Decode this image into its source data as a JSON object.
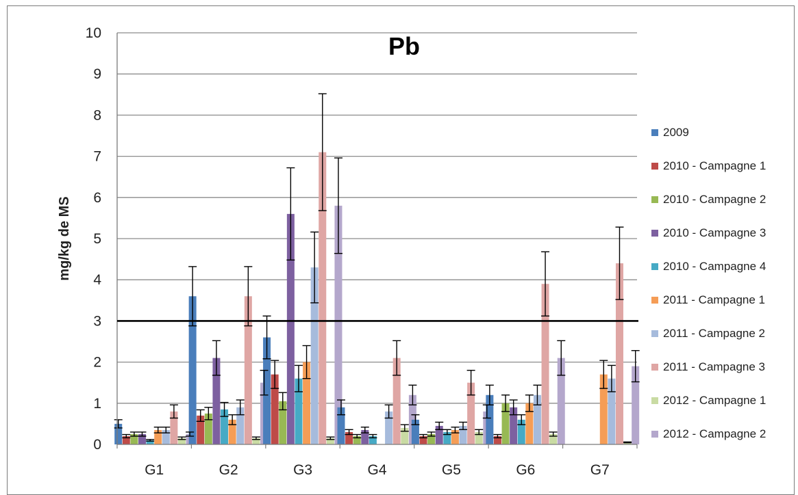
{
  "chart_data": {
    "type": "bar",
    "title": "Pb",
    "ylabel": "mg/kg de MS",
    "xlabel": "",
    "ylim": [
      0,
      10
    ],
    "yticks": [
      0,
      1,
      2,
      3,
      4,
      5,
      6,
      7,
      8,
      9,
      10
    ],
    "grid": true,
    "legend_position": "right",
    "reference_line": 3,
    "categories": [
      "G1",
      "G2",
      "G3",
      "G4",
      "G5",
      "G6",
      "G7"
    ],
    "series": [
      {
        "name": "2009",
        "color": "#4a7ebb",
        "values": [
          0.5,
          3.6,
          2.6,
          0.9,
          0.6,
          1.2,
          null
        ],
        "errors": [
          0.1,
          0.72,
          0.52,
          0.18,
          0.12,
          0.24,
          null
        ]
      },
      {
        "name": "2010 - Campagne 1",
        "color": "#be4b48",
        "values": [
          0.2,
          0.7,
          1.7,
          0.3,
          0.2,
          0.2,
          null
        ],
        "errors": [
          0.04,
          0.14,
          0.34,
          0.06,
          0.04,
          0.04,
          null
        ]
      },
      {
        "name": "2010 - Campagne 2",
        "color": "#98b954",
        "values": [
          0.25,
          0.75,
          1.05,
          0.2,
          0.25,
          1.0,
          null
        ],
        "errors": [
          0.05,
          0.15,
          0.21,
          0.04,
          0.05,
          0.2,
          null
        ]
      },
      {
        "name": "2010 - Campagne 3",
        "color": "#7d60a0",
        "values": [
          0.25,
          2.1,
          5.6,
          0.35,
          0.45,
          0.9,
          null
        ],
        "errors": [
          0.05,
          0.42,
          1.12,
          0.07,
          0.09,
          0.18,
          null
        ]
      },
      {
        "name": "2010 - Campagne 4",
        "color": "#46aac5",
        "values": [
          0.1,
          0.85,
          1.6,
          0.2,
          0.3,
          0.6,
          null
        ],
        "errors": [
          0.02,
          0.17,
          0.32,
          0.04,
          0.06,
          0.12,
          null
        ]
      },
      {
        "name": "2011 - Campagne 1",
        "color": "#f59d56",
        "values": [
          0.35,
          0.6,
          2.0,
          null,
          0.35,
          1.0,
          1.7
        ],
        "errors": [
          0.07,
          0.12,
          0.4,
          null,
          0.07,
          0.2,
          0.34
        ]
      },
      {
        "name": "2011 - Campagne 2",
        "color": "#a6bbdc",
        "values": [
          0.35,
          0.9,
          4.3,
          0.8,
          0.45,
          1.2,
          1.6
        ],
        "errors": [
          0.07,
          0.18,
          0.86,
          0.16,
          0.09,
          0.24,
          0.32
        ]
      },
      {
        "name": "2011 - Campagne 3",
        "color": "#dfa6a4",
        "values": [
          0.8,
          3.6,
          7.1,
          2.1,
          1.5,
          3.9,
          4.4
        ],
        "errors": [
          0.16,
          0.72,
          1.42,
          0.42,
          0.3,
          0.78,
          0.88
        ]
      },
      {
        "name": "2012 - Campagne 1",
        "color": "#c9dba3",
        "values": [
          0.15,
          0.15,
          0.15,
          0.4,
          0.3,
          0.25,
          0.05
        ],
        "errors": [
          0.03,
          0.03,
          0.03,
          0.08,
          0.06,
          0.05,
          0.01
        ]
      },
      {
        "name": "2012 - Campagne 2",
        "color": "#b4a7cc",
        "values": [
          0.25,
          1.5,
          5.8,
          1.2,
          0.8,
          2.1,
          1.9
        ],
        "errors": [
          0.05,
          0.3,
          1.16,
          0.24,
          0.16,
          0.42,
          0.38
        ]
      }
    ]
  }
}
